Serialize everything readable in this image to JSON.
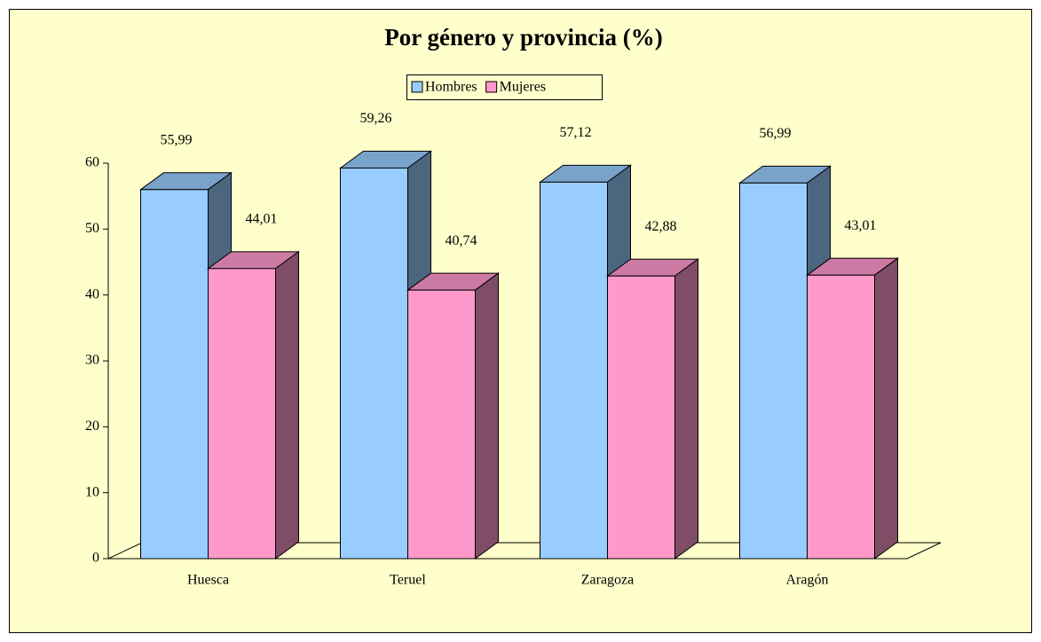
{
  "chart_data": {
    "type": "bar3d",
    "title": "Por género y provincia (%)",
    "categories": [
      "Huesca",
      "Teruel",
      "Zaragoza",
      "Aragón"
    ],
    "series": [
      {
        "name": "Hombres",
        "color": "#99ccff",
        "values": [
          55.99,
          59.26,
          57.12,
          56.99
        ],
        "value_labels": [
          "55,99",
          "59,26",
          "57,12",
          "56,99"
        ]
      },
      {
        "name": "Mujeres",
        "color": "#ff99cc",
        "values": [
          44.01,
          40.74,
          42.88,
          43.01
        ],
        "value_labels": [
          "44,01",
          "40,74",
          "42,88",
          "43,01"
        ]
      }
    ],
    "ylim": [
      0,
      60
    ],
    "yticks": [
      0,
      10,
      20,
      30,
      40,
      50,
      60
    ],
    "legend": "top"
  }
}
